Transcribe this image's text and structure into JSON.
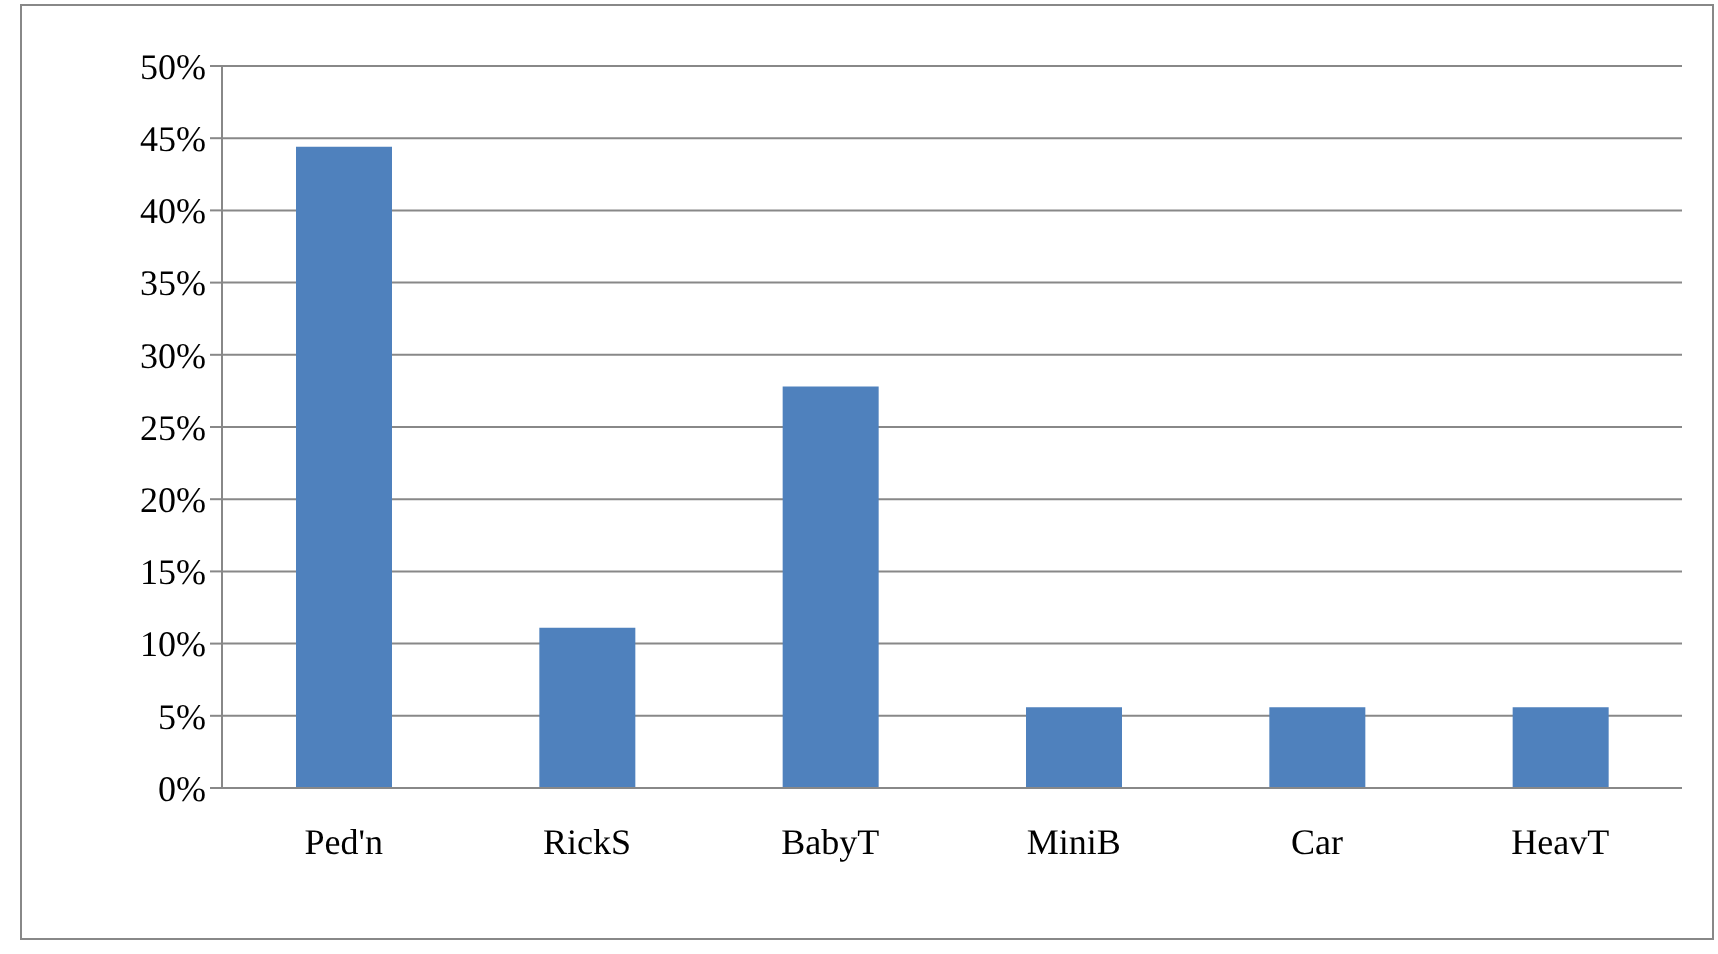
{
  "chart_data": {
    "type": "bar",
    "categories": [
      "Ped'n",
      "RickS",
      "BabyT",
      "MiniB",
      "Car",
      "HeavT"
    ],
    "values": [
      44.4,
      11.1,
      27.8,
      5.6,
      5.6,
      5.6
    ],
    "color": "#4f81bd",
    "ylim": [
      0,
      50
    ],
    "yticks": [
      {
        "value": 0,
        "label": "0%"
      },
      {
        "value": 5,
        "label": "5%"
      },
      {
        "value": 10,
        "label": "10%"
      },
      {
        "value": 15,
        "label": "15%"
      },
      {
        "value": 20,
        "label": "20%"
      },
      {
        "value": 25,
        "label": "25%"
      },
      {
        "value": 30,
        "label": "30%"
      },
      {
        "value": 35,
        "label": "35%"
      },
      {
        "value": 40,
        "label": "40%"
      },
      {
        "value": 45,
        "label": "45%"
      },
      {
        "value": 50,
        "label": "50%"
      }
    ],
    "grid": "y",
    "legend": false
  }
}
